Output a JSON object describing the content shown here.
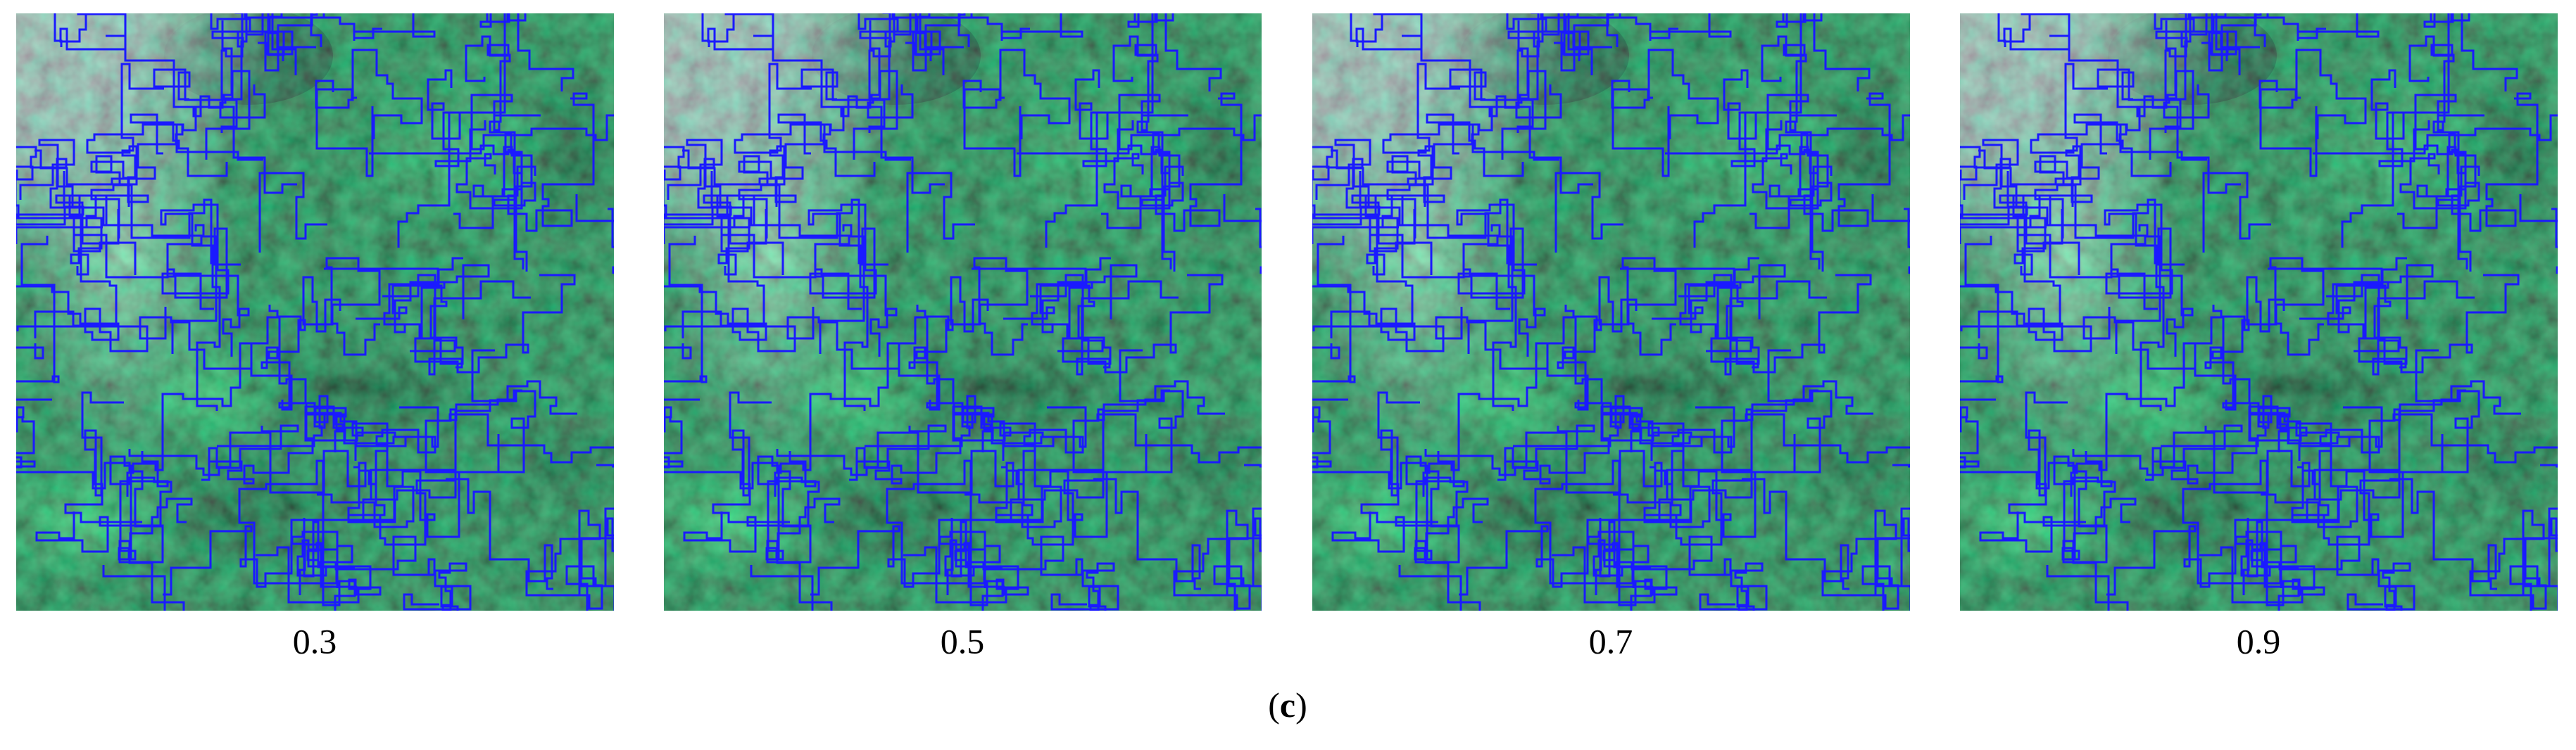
{
  "panels": [
    {
      "label": "0.3"
    },
    {
      "label": "0.5"
    },
    {
      "label": "0.7"
    },
    {
      "label": "0.9"
    }
  ],
  "caption": {
    "open": "(",
    "letter": "c",
    "close": ")"
  }
}
